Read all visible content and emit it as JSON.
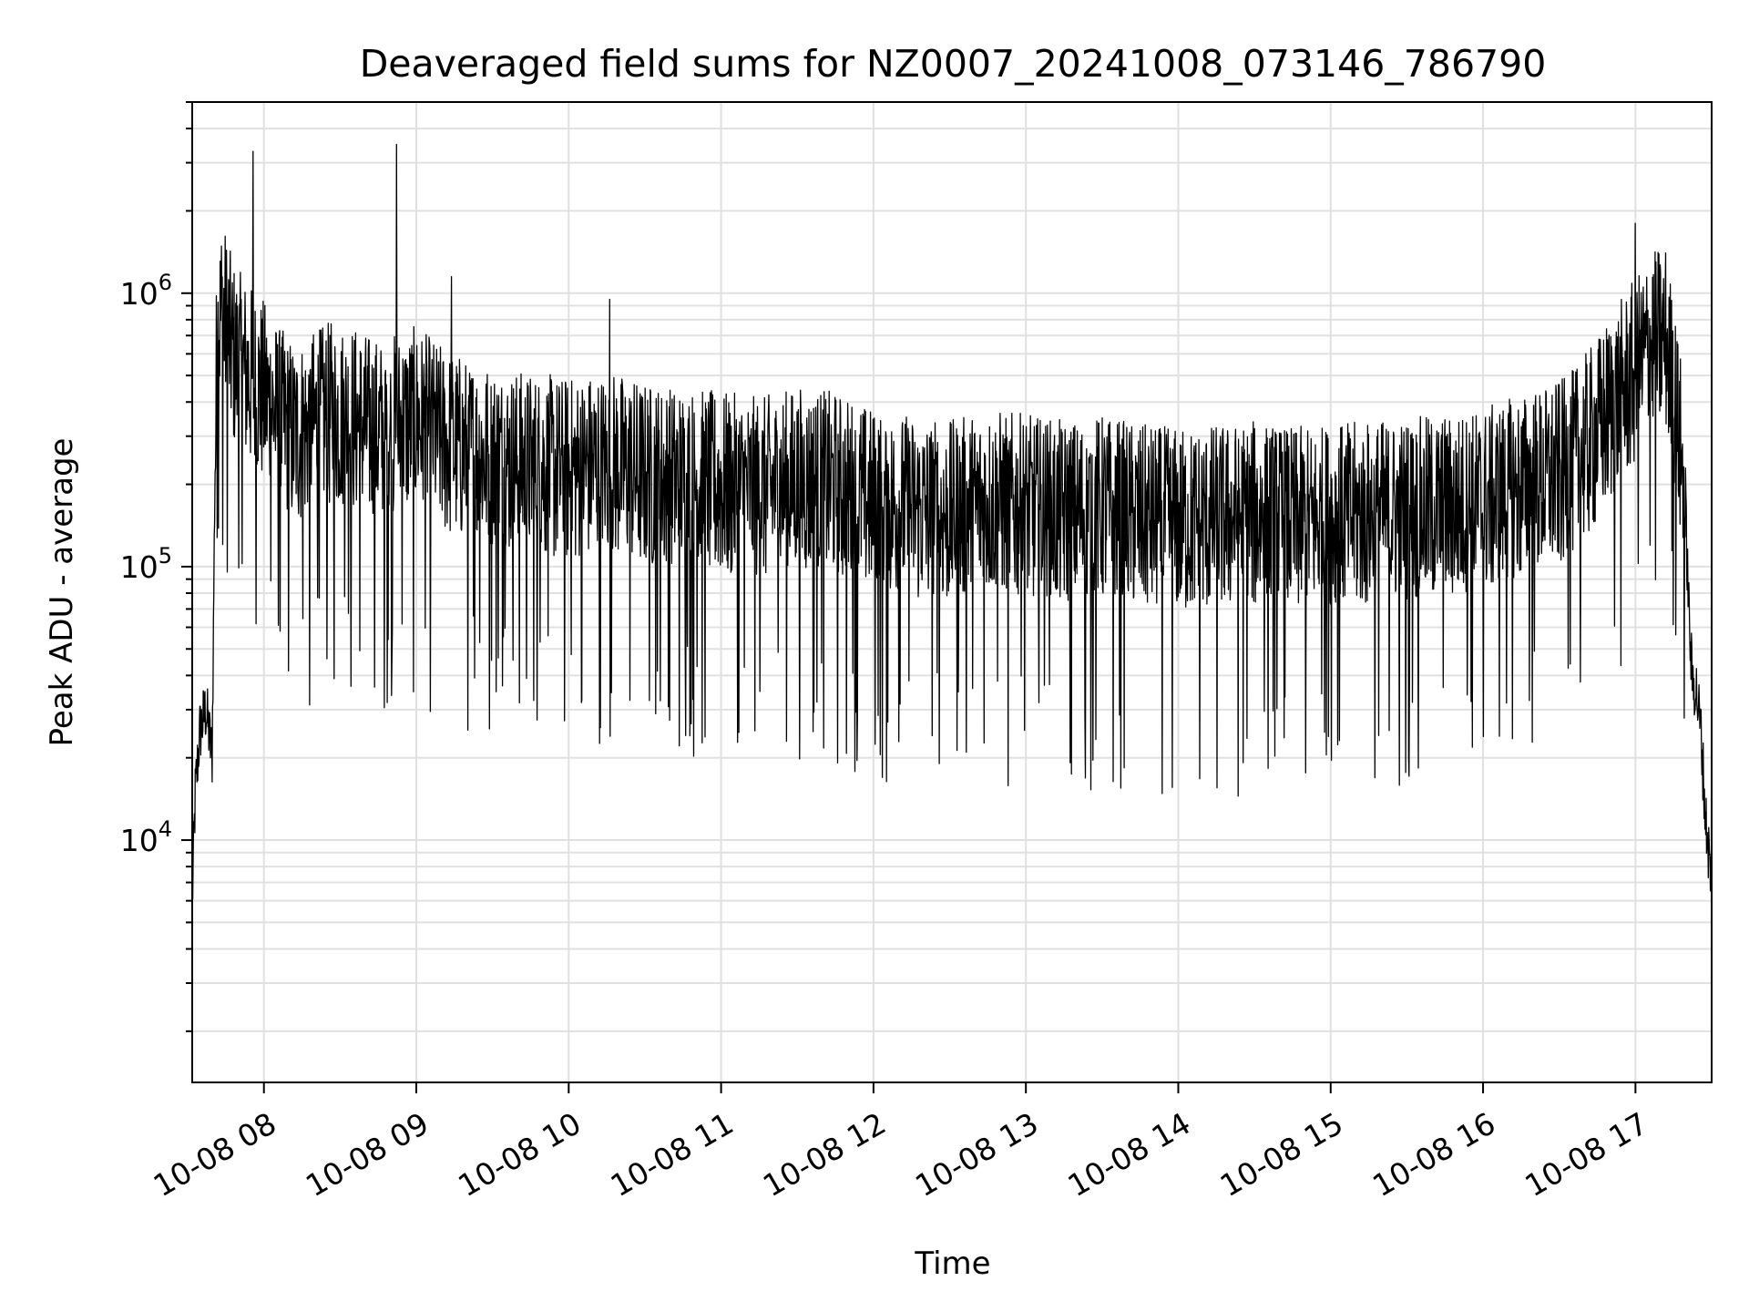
{
  "chart_data": {
    "type": "line",
    "title": "Deaveraged field sums for NZ0007_20241008_073146_786790",
    "xlabel": "Time",
    "ylabel": "Peak ADU - average",
    "x_scale": "time",
    "y_scale": "log",
    "xlim": [
      "2024-10-08 07:31:46",
      "2024-10-08 17:30:00"
    ],
    "ylim": [
      1300,
      5000000
    ],
    "grid": true,
    "line_color": "#000000",
    "grid_color": "#e0e0e0",
    "x_tick_labels": [
      "10-08 08",
      "10-08 09",
      "10-08 10",
      "10-08 11",
      "10-08 12",
      "10-08 13",
      "10-08 14",
      "10-08 15",
      "10-08 16",
      "10-08 17"
    ],
    "x_tick_hours": [
      8,
      9,
      10,
      11,
      12,
      13,
      14,
      15,
      16,
      17
    ],
    "y_tick_exponents": [
      "4",
      "5",
      "6"
    ],
    "y_tick_values": [
      10000,
      100000,
      1000000
    ],
    "series": [
      {
        "hours": [
          7.53,
          7.55,
          7.58,
          7.62,
          7.66,
          7.68,
          7.69,
          7.7,
          7.72,
          7.75,
          7.78,
          7.82,
          7.88,
          7.93,
          8.0,
          8.1,
          8.2,
          8.3,
          8.45,
          8.6,
          8.75,
          8.87,
          9.0,
          9.2,
          9.4,
          9.6,
          9.8,
          10.0,
          10.25,
          10.5,
          10.75,
          11.0,
          11.25,
          11.5,
          11.75,
          12.0,
          12.25,
          12.5,
          12.75,
          13.0,
          13.25,
          13.5,
          13.75,
          14.0,
          14.25,
          14.5,
          14.75,
          15.0,
          15.25,
          15.5,
          15.75,
          16.0,
          16.2,
          16.4,
          16.55,
          16.7,
          16.85,
          17.0,
          17.1,
          17.2,
          17.25,
          17.3,
          17.33,
          17.35,
          17.37,
          17.4,
          17.43,
          17.46,
          17.5
        ],
        "values": [
          6000,
          15000,
          25000,
          30000,
          20000,
          250000,
          700000,
          850000,
          1000000,
          900000,
          750000,
          650000,
          600000,
          550000,
          500000,
          400000,
          350000,
          380000,
          420000,
          400000,
          360000,
          380000,
          400000,
          330000,
          300000,
          280000,
          270000,
          260000,
          280000,
          250000,
          240000,
          230000,
          220000,
          240000,
          230000,
          200000,
          190000,
          180000,
          200000,
          190000,
          180000,
          190000,
          175000,
          170000,
          175000,
          180000,
          170000,
          175000,
          180000,
          185000,
          190000,
          200000,
          220000,
          240000,
          260000,
          330000,
          450000,
          600000,
          750000,
          800000,
          500000,
          300000,
          150000,
          70000,
          40000,
          35000,
          25000,
          12000,
          7000
        ]
      }
    ],
    "annotations_spikes": [
      {
        "hour": 7.93,
        "value": 3300000
      },
      {
        "hour": 8.87,
        "value": 3500000
      },
      {
        "hour": 9.23,
        "value": 1150000
      },
      {
        "hour": 10.27,
        "value": 950000
      },
      {
        "hour": 17.0,
        "value": 1800000
      }
    ]
  }
}
